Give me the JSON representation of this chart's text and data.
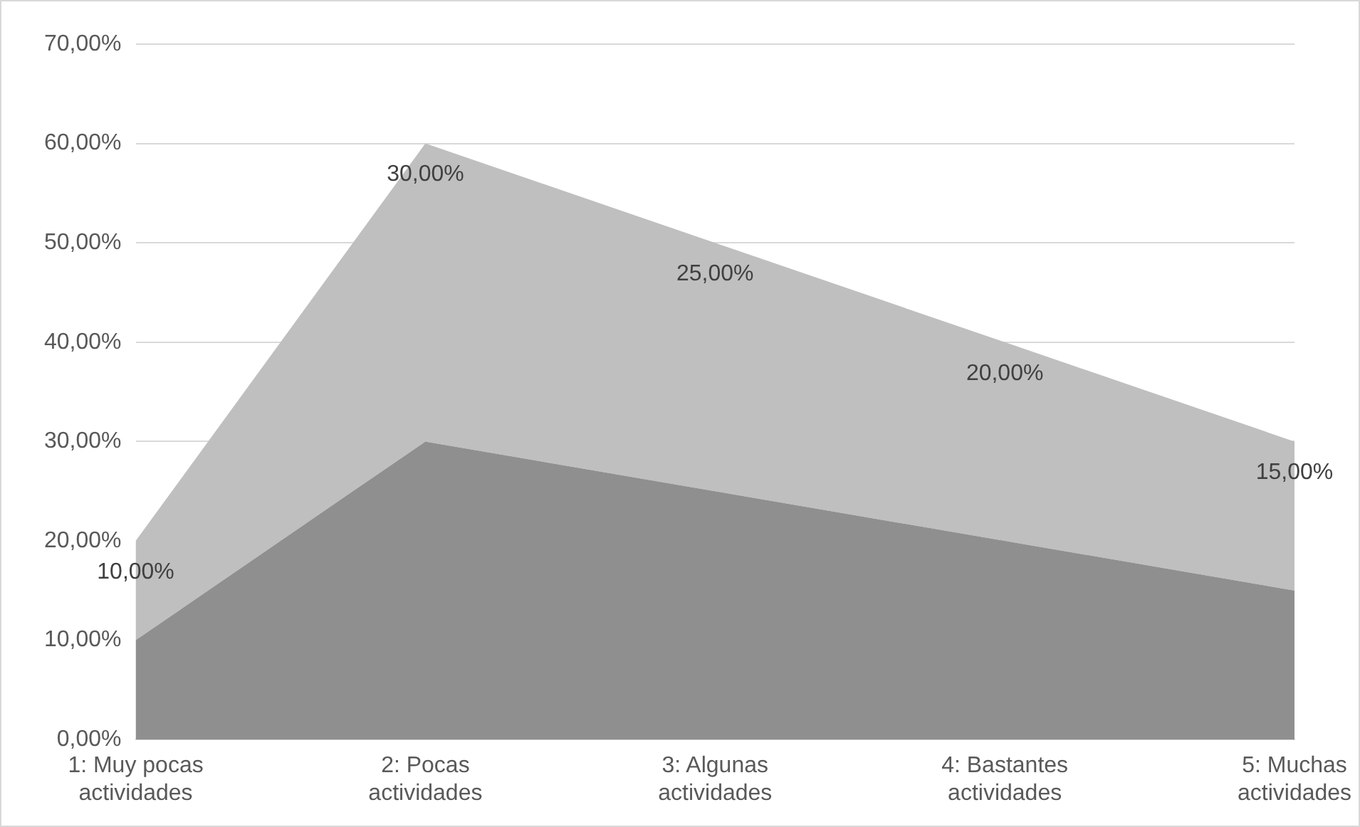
{
  "chart_data": {
    "type": "area",
    "stacked": true,
    "grid": "y",
    "categories": [
      "1: Muy pocas actividades",
      "2: Pocas actividades",
      "3: Algunas actividades",
      "4: Bastantes actividades",
      "5: Muchas actividades"
    ],
    "series": [
      {
        "color": "#8f8f8f",
        "values": [
          10,
          30,
          25,
          20,
          15
        ]
      },
      {
        "color": "#bfbfbf",
        "values": [
          10,
          30,
          25,
          20,
          15
        ],
        "value_labels": [
          "10,00%",
          "30,00%",
          "25,00%",
          "20,00%",
          "15,00%"
        ]
      }
    ],
    "ylim": [
      0,
      70
    ],
    "yticks": [
      {
        "value": 0,
        "label": "0,00%"
      },
      {
        "value": 10,
        "label": "10,00%"
      },
      {
        "value": 20,
        "label": "20,00%"
      },
      {
        "value": 30,
        "label": "30,00%"
      },
      {
        "value": 40,
        "label": "40,00%"
      },
      {
        "value": 50,
        "label": "50,00%"
      },
      {
        "value": 60,
        "label": "60,00%"
      },
      {
        "value": 70,
        "label": "70,00%"
      }
    ]
  }
}
